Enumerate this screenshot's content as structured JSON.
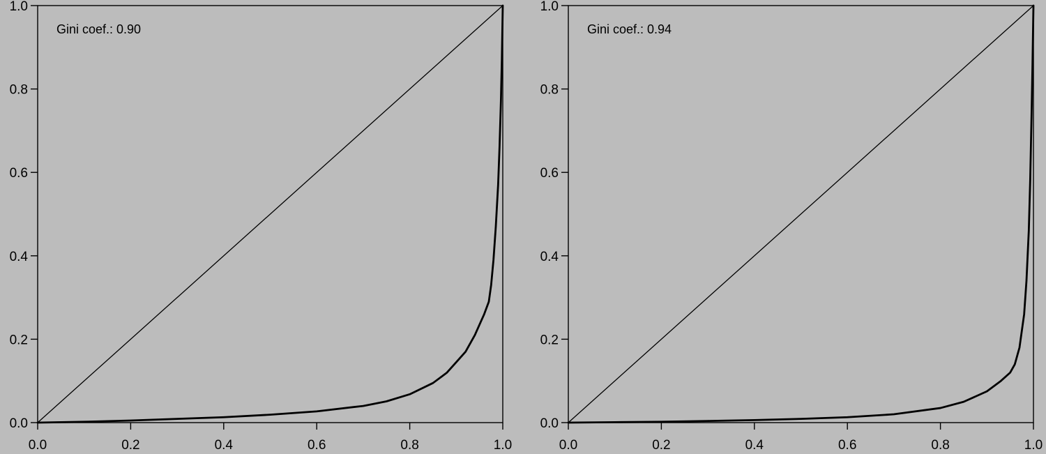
{
  "chart_data": [
    {
      "type": "line",
      "title": "",
      "xlabel": "",
      "ylabel": "",
      "xlim": [
        0,
        1
      ],
      "ylim": [
        0,
        1
      ],
      "x_ticks": [
        "0.0",
        "0.2",
        "0.4",
        "0.6",
        "0.8",
        "1.0"
      ],
      "y_ticks": [
        "0.0",
        "0.2",
        "0.4",
        "0.6",
        "0.8",
        "1.0"
      ],
      "annotation": "Gini coef.: 0.90",
      "equality_line": {
        "x": [
          0,
          1
        ],
        "y": [
          0,
          1
        ]
      },
      "series": [
        {
          "x": [
            0.0,
            0.1,
            0.2,
            0.3,
            0.4,
            0.5,
            0.6,
            0.7,
            0.75,
            0.8,
            0.85,
            0.88,
            0.9,
            0.92,
            0.94,
            0.95,
            0.96,
            0.97,
            0.975,
            0.98,
            0.985,
            0.99,
            0.993,
            0.996,
            0.998,
            1.0
          ],
          "y": [
            0.0,
            0.002,
            0.005,
            0.009,
            0.013,
            0.019,
            0.027,
            0.04,
            0.051,
            0.068,
            0.095,
            0.12,
            0.145,
            0.17,
            0.21,
            0.235,
            0.26,
            0.29,
            0.33,
            0.39,
            0.47,
            0.57,
            0.66,
            0.77,
            0.87,
            1.0
          ]
        }
      ],
      "grid": false,
      "background": "#bcbcbc"
    },
    {
      "type": "line",
      "title": "",
      "xlabel": "",
      "ylabel": "",
      "xlim": [
        0,
        1
      ],
      "ylim": [
        0,
        1
      ],
      "x_ticks": [
        "0.0",
        "0.2",
        "0.4",
        "0.6",
        "0.8",
        "1.0"
      ],
      "y_ticks": [
        "0.0",
        "0.2",
        "0.4",
        "0.6",
        "0.8",
        "1.0"
      ],
      "annotation": "Gini coef.: 0.94",
      "equality_line": {
        "x": [
          0,
          1
        ],
        "y": [
          0,
          1
        ]
      },
      "series": [
        {
          "x": [
            0.0,
            0.1,
            0.2,
            0.3,
            0.4,
            0.5,
            0.6,
            0.7,
            0.8,
            0.85,
            0.9,
            0.93,
            0.95,
            0.96,
            0.97,
            0.98,
            0.985,
            0.99,
            0.993,
            0.996,
            0.998,
            1.0
          ],
          "y": [
            0.0,
            0.001,
            0.002,
            0.004,
            0.006,
            0.009,
            0.013,
            0.02,
            0.035,
            0.05,
            0.075,
            0.1,
            0.12,
            0.14,
            0.18,
            0.26,
            0.34,
            0.46,
            0.58,
            0.74,
            0.86,
            1.0
          ]
        }
      ],
      "grid": false,
      "background": "#bcbcbc"
    }
  ]
}
